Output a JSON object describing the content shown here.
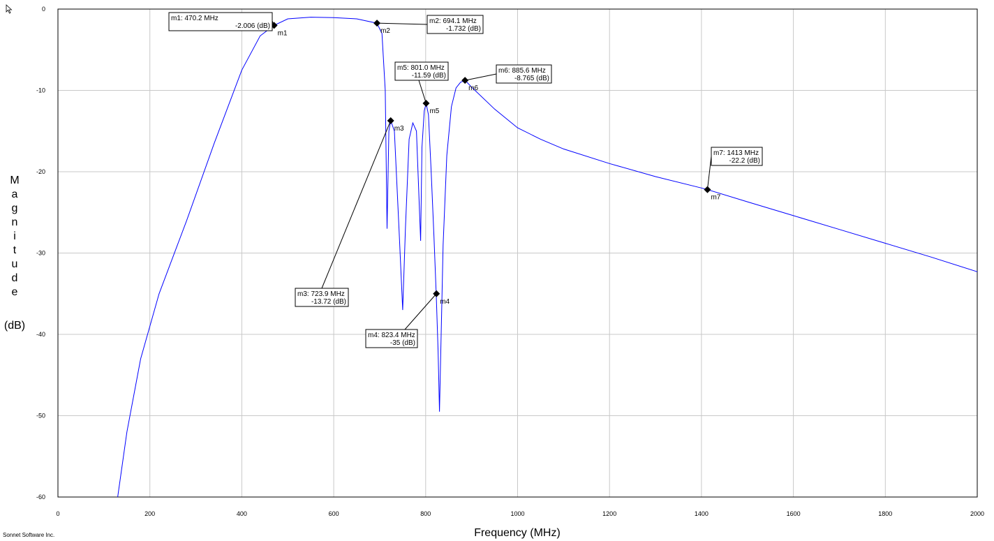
{
  "chart_data": {
    "type": "line",
    "xlabel": "Frequency (MHz)",
    "ylabel_letters": [
      "M",
      "a",
      "g",
      "n",
      "i",
      "t",
      "u",
      "d",
      "e"
    ],
    "ylabel_unit": "(dB)",
    "xlim": [
      0,
      2000
    ],
    "ylim": [
      -60,
      0
    ],
    "x_ticks": [
      0,
      200,
      400,
      600,
      800,
      1000,
      1200,
      1400,
      1600,
      1800,
      2000
    ],
    "y_ticks": [
      0,
      -10,
      -20,
      -30,
      -40,
      -50,
      -60
    ],
    "grid": true,
    "line_color": "#0000ff",
    "series": [
      {
        "x": [
          130,
          150,
          180,
          220,
          280,
          340,
          400,
          440,
          470,
          500,
          550,
          600,
          650,
          694,
          705,
          712,
          716,
          720,
          724,
          732,
          742,
          750,
          756,
          764,
          772,
          780,
          786,
          789,
          792,
          797,
          801,
          806,
          812,
          818,
          823,
          827,
          830,
          833,
          838,
          846,
          856,
          866,
          876,
          886,
          900,
          950,
          1000,
          1050,
          1100,
          1200,
          1300,
          1400,
          1413,
          1500,
          1600,
          1700,
          1800,
          1900,
          2000
        ],
        "y": [
          -60,
          -52,
          -43,
          -35,
          -26,
          -16.5,
          -7.5,
          -3.3,
          -2.006,
          -1.2,
          -1.0,
          -1.05,
          -1.2,
          -1.732,
          -3,
          -10,
          -27,
          -15,
          -13.72,
          -15,
          -27,
          -37,
          -27,
          -16,
          -14,
          -15,
          -24,
          -28.5,
          -17,
          -12.5,
          -11.59,
          -13,
          -20,
          -28,
          -35,
          -42,
          -49.5,
          -42,
          -29,
          -18,
          -12,
          -9.7,
          -9.0,
          -8.765,
          -9.6,
          -12.3,
          -14.6,
          -16.0,
          -17.2,
          -19.0,
          -20.6,
          -22.0,
          -22.2,
          -23.7,
          -25.4,
          -27.1,
          -28.8,
          -30.5,
          -32.3
        ]
      }
    ],
    "markers": [
      {
        "name": "m1",
        "x": 470.2,
        "y": -2.006,
        "freq_text": "m1: 470.2 MHz",
        "val_text": "-2.006  (dB)"
      },
      {
        "name": "m2",
        "x": 694.1,
        "y": -1.732,
        "freq_text": "m2: 694.1 MHz",
        "val_text": "-1.732  (dB)"
      },
      {
        "name": "m3",
        "x": 723.9,
        "y": -13.72,
        "freq_text": "m3: 723.9 MHz",
        "val_text": "-13.72  (dB)"
      },
      {
        "name": "m4",
        "x": 823.4,
        "y": -35,
        "freq_text": "m4: 823.4 MHz",
        "val_text": "-35  (dB)"
      },
      {
        "name": "m5",
        "x": 801.0,
        "y": -11.59,
        "freq_text": "m5: 801.0 MHz",
        "val_text": "-11.59  (dB)"
      },
      {
        "name": "m6",
        "x": 885.6,
        "y": -8.765,
        "freq_text": "m6: 885.6 MHz",
        "val_text": "-8.765  (dB)"
      },
      {
        "name": "m7",
        "x": 1413,
        "y": -22.2,
        "freq_text": "m7:  1413 MHz",
        "val_text": "-22.2  (dB)"
      }
    ]
  },
  "footer": "Sonnet Software Inc."
}
